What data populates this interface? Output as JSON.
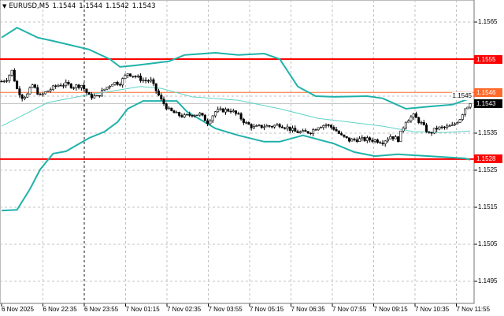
{
  "header": {
    "symbol": "EURUSD,M5",
    "ohlc": [
      "1.1544",
      "1.1544",
      "1.1542",
      "1.1543"
    ],
    "menu_icon": "triangle-down-icon"
  },
  "price_axis": {
    "ticks": [
      "1.1565",
      "1.1545",
      "1.1535",
      "1.1525",
      "1.1515",
      "1.1505",
      "1.1495"
    ]
  },
  "time_axis": {
    "ticks": [
      "6 Nov 2025",
      "6 Nov 22:35",
      "6 Nov 23:55",
      "7 Nov 01:15",
      "7 Nov 02:35",
      "7 Nov 03:55",
      "7 Nov 05:15",
      "7 Nov 06:35",
      "7 Nov 07:55",
      "7 Nov 09:15",
      "7 Nov 10:35",
      "7 Nov 11:55"
    ]
  },
  "levels": [
    {
      "price": 1.1555,
      "label": "1.1555",
      "color": "#ff0000",
      "kind": "resistance"
    },
    {
      "price": 1.1546,
      "label": "1.1546",
      "color": "#ff6a2a",
      "kind": "level"
    },
    {
      "price": 1.1528,
      "label": "1.1528",
      "color": "#ff0000",
      "kind": "support"
    }
  ],
  "bid": {
    "price": 1.1543,
    "label": "1.1543",
    "color": "#000000"
  },
  "colors": {
    "bands": "#20b2aa",
    "ma": "#5fd3c8",
    "grid": "#c0c0c0",
    "candles": "#000000"
  },
  "chart_data": {
    "type": "candlestick",
    "timeframe": "M5",
    "ylim": [
      1.1489,
      1.1571
    ],
    "closes": [
      [
        0,
        1.1549
      ],
      [
        2,
        1.15497
      ],
      [
        4,
        1.15518
      ],
      [
        6,
        1.15469
      ],
      [
        8,
        1.15448
      ],
      [
        10,
        1.15454
      ],
      [
        12,
        1.1548
      ],
      [
        15,
        1.1545
      ],
      [
        18,
        1.15465
      ],
      [
        22,
        1.1548
      ],
      [
        25,
        1.15482
      ],
      [
        28,
        1.15476
      ],
      [
        31,
        1.1548
      ],
      [
        34,
        1.1545
      ],
      [
        37,
        1.15448
      ],
      [
        40,
        1.15469
      ],
      [
        43,
        1.15486
      ],
      [
        46,
        1.15486
      ],
      [
        49,
        1.15512
      ],
      [
        52,
        1.15503
      ],
      [
        55,
        1.15493
      ],
      [
        58,
        1.15491
      ],
      [
        62,
        1.15439
      ],
      [
        65,
        1.15412
      ],
      [
        68,
        1.15401
      ],
      [
        71,
        1.15395
      ],
      [
        74,
        1.15401
      ],
      [
        77,
        1.15401
      ],
      [
        80,
        1.1538
      ],
      [
        83,
        1.15408
      ],
      [
        86,
        1.15412
      ],
      [
        89,
        1.15412
      ],
      [
        92,
        1.15397
      ],
      [
        95,
        1.15376
      ],
      [
        98,
        1.15365
      ],
      [
        102,
        1.15369
      ],
      [
        105,
        1.15369
      ],
      [
        108,
        1.15373
      ],
      [
        111,
        1.15365
      ],
      [
        114,
        1.15354
      ],
      [
        117,
        1.15352
      ],
      [
        120,
        1.15354
      ],
      [
        123,
        1.15369
      ],
      [
        126,
        1.15373
      ],
      [
        129,
        1.15363
      ],
      [
        132,
        1.15342
      ],
      [
        135,
        1.15331
      ],
      [
        138,
        1.15333
      ],
      [
        142,
        1.15333
      ],
      [
        145,
        1.15331
      ],
      [
        148,
        1.15327
      ],
      [
        151,
        1.15342
      ],
      [
        154,
        1.15333
      ],
      [
        157,
        1.15384
      ],
      [
        160,
        1.15397
      ],
      [
        163,
        1.15376
      ],
      [
        166,
        1.15348
      ],
      [
        169,
        1.15363
      ],
      [
        172,
        1.15365
      ],
      [
        175,
        1.15369
      ],
      [
        178,
        1.1539
      ],
      [
        180,
        1.15418
      ],
      [
        182,
        1.1543
      ]
    ],
    "bollinger_upper": [
      [
        0,
        1.15608
      ],
      [
        6,
        1.15635
      ],
      [
        14,
        1.15608
      ],
      [
        20,
        1.15599
      ],
      [
        34,
        1.15576
      ],
      [
        42,
        1.1555
      ],
      [
        46,
        1.15529
      ],
      [
        52,
        1.15533
      ],
      [
        65,
        1.15544
      ],
      [
        71,
        1.15561
      ],
      [
        83,
        1.15567
      ],
      [
        92,
        1.15561
      ],
      [
        102,
        1.15565
      ],
      [
        108,
        1.1555
      ],
      [
        115,
        1.15476
      ],
      [
        122,
        1.1545
      ],
      [
        129,
        1.15448
      ],
      [
        142,
        1.1545
      ],
      [
        148,
        1.15444
      ],
      [
        157,
        1.15416
      ],
      [
        166,
        1.15422
      ],
      [
        175,
        1.15427
      ],
      [
        182,
        1.15444
      ]
    ],
    "moving_average": [
      [
        0,
        1.15369
      ],
      [
        18,
        1.15433
      ],
      [
        34,
        1.15454
      ],
      [
        46,
        1.15467
      ],
      [
        54,
        1.15476
      ],
      [
        62,
        1.15471
      ],
      [
        74,
        1.15448
      ],
      [
        92,
        1.15439
      ],
      [
        108,
        1.15416
      ],
      [
        123,
        1.1539
      ],
      [
        135,
        1.1538
      ],
      [
        148,
        1.15369
      ],
      [
        160,
        1.15354
      ],
      [
        172,
        1.15352
      ],
      [
        182,
        1.15356
      ]
    ],
    "bollinger_lower": [
      [
        0,
        1.15141
      ],
      [
        6,
        1.15143
      ],
      [
        11,
        1.15199
      ],
      [
        15,
        1.15252
      ],
      [
        20,
        1.15295
      ],
      [
        25,
        1.15301
      ],
      [
        34,
        1.15337
      ],
      [
        40,
        1.15354
      ],
      [
        45,
        1.1538
      ],
      [
        49,
        1.15416
      ],
      [
        55,
        1.15437
      ],
      [
        68,
        1.15437
      ],
      [
        72,
        1.15408
      ],
      [
        83,
        1.15363
      ],
      [
        92,
        1.15344
      ],
      [
        102,
        1.15327
      ],
      [
        108,
        1.15327
      ],
      [
        117,
        1.15344
      ],
      [
        129,
        1.15322
      ],
      [
        137,
        1.15299
      ],
      [
        145,
        1.15288
      ],
      [
        154,
        1.15293
      ],
      [
        166,
        1.15288
      ],
      [
        180,
        1.15282
      ],
      [
        182,
        1.15278
      ]
    ]
  }
}
